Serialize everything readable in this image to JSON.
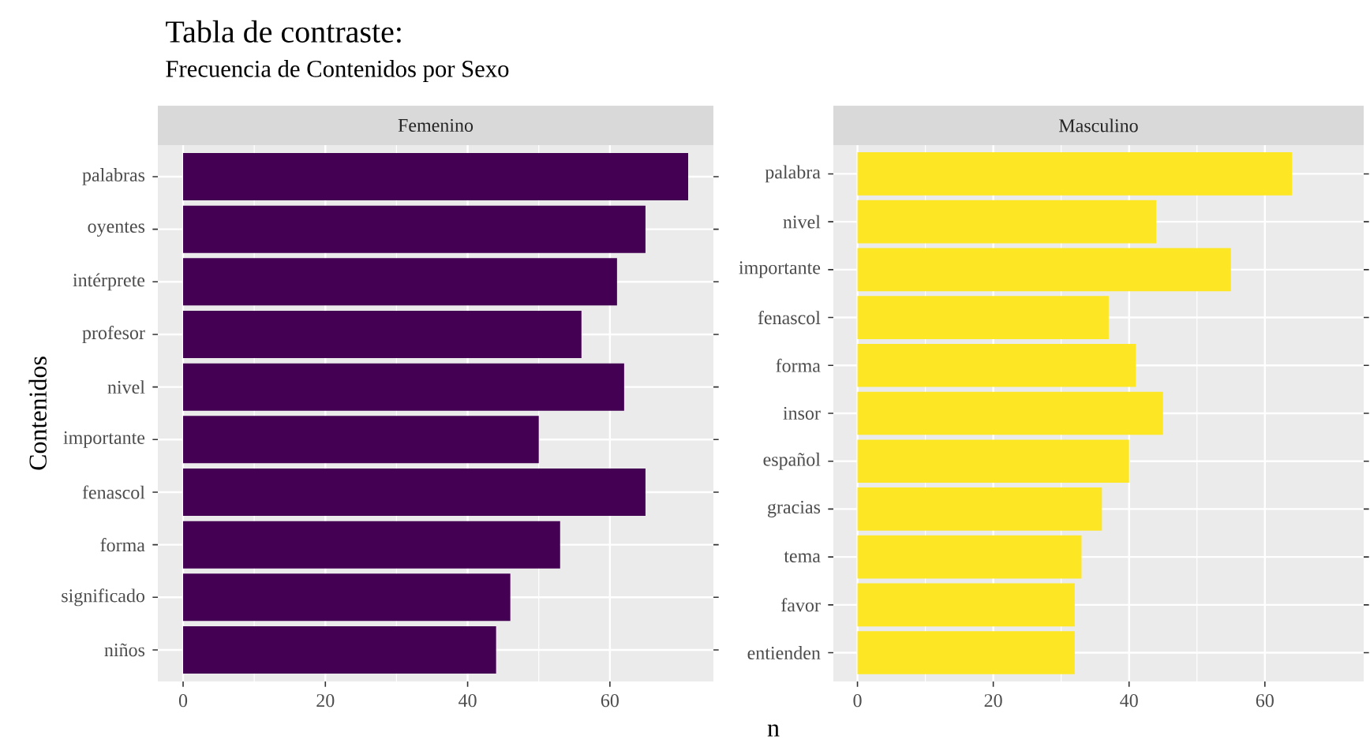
{
  "chart_data": [
    {
      "type": "bar",
      "orientation": "horizontal",
      "title": "Tabla de contraste:",
      "subtitle": "Frecuencia de Contenidos por Sexo",
      "ylabel": "Contenidos",
      "categories": [
        "palabras",
        "oyentes",
        "intérprete",
        "profesor",
        "nivel",
        "importante",
        "fenascol",
        "forma",
        "significado",
        "niños"
      ],
      "series": [
        {
          "name": "Femenino",
          "color": "#440154",
          "values": [
            71,
            65,
            61,
            56,
            62,
            50,
            65,
            53,
            46,
            44
          ]
        }
      ],
      "xlim": [
        -3.55,
        74.55
      ],
      "xticks": [
        0,
        20,
        40,
        60
      ],
      "grid": true
    },
    {
      "type": "bar",
      "orientation": "horizontal",
      "xlabel": "n",
      "categories": [
        "palabra",
        "nivel",
        "importante",
        "fenascol",
        "forma",
        "insor",
        "español",
        "gracias",
        "tema",
        "favor",
        "entienden"
      ],
      "series": [
        {
          "name": "Masculino",
          "color": "#FDE725",
          "values": [
            64,
            44,
            55,
            37,
            41,
            45,
            40,
            36,
            33,
            32,
            32
          ]
        }
      ],
      "xlim": [
        -3.55,
        74.55
      ],
      "xticks": [
        0,
        20,
        40,
        60
      ],
      "grid": true
    }
  ]
}
